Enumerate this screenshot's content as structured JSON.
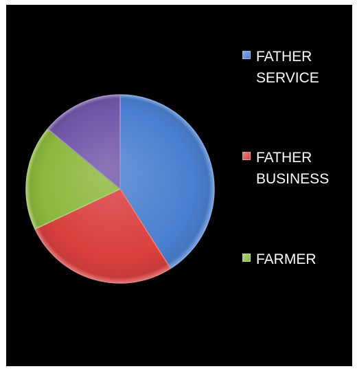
{
  "chart_data": {
    "type": "pie",
    "title": "",
    "categories": [
      "FATHER SERVICE",
      "FATHER BUSINESS",
      "FARMER",
      ""
    ],
    "values": [
      41,
      27,
      18,
      14
    ],
    "colors": [
      "#4a7fd0",
      "#d9403f",
      "#8cb83d",
      "#7358a8"
    ],
    "legend_position": "right"
  }
}
